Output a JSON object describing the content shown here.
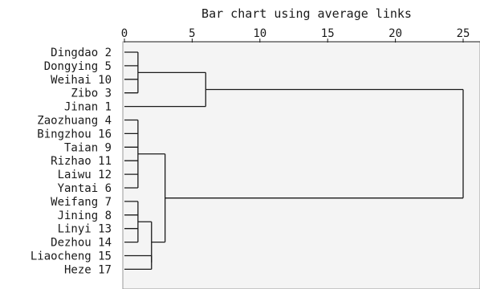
{
  "chart_data": {
    "type": "dendrogram",
    "title": "Bar chart using average links",
    "xlim": [
      0,
      25
    ],
    "xticks": [
      0,
      5,
      10,
      15,
      20,
      25
    ],
    "orientation": "horizontal",
    "leaves": [
      "Dingdao 2",
      "Dongying 5",
      "Weihai 10",
      "Zibo 3",
      "Jinan 1",
      "Zaozhuang 4",
      "Bingzhou 16",
      "Taian 9",
      "Rizhao 11",
      "Laiwu 12",
      "Yantai 6",
      "Weifang 7",
      "Jining 8",
      "Linyi 13",
      "Dezhou 14",
      "Liaocheng 15",
      "Heze 17"
    ],
    "merges": [
      {
        "children": [
          0,
          1,
          2,
          3
        ],
        "height": 1
      },
      {
        "children": [
          "m0",
          4
        ],
        "height": 6
      },
      {
        "children": [
          5,
          6,
          7,
          8,
          9,
          10
        ],
        "height": 1
      },
      {
        "children": [
          11,
          12,
          13,
          14
        ],
        "height": 1
      },
      {
        "children": [
          15,
          16
        ],
        "height": 2
      },
      {
        "children": [
          "m3",
          "m4"
        ],
        "height": 2
      },
      {
        "children": [
          "m2",
          "m5"
        ],
        "height": 3
      },
      {
        "children": [
          "m1",
          "m6"
        ],
        "height": 25
      }
    ]
  }
}
